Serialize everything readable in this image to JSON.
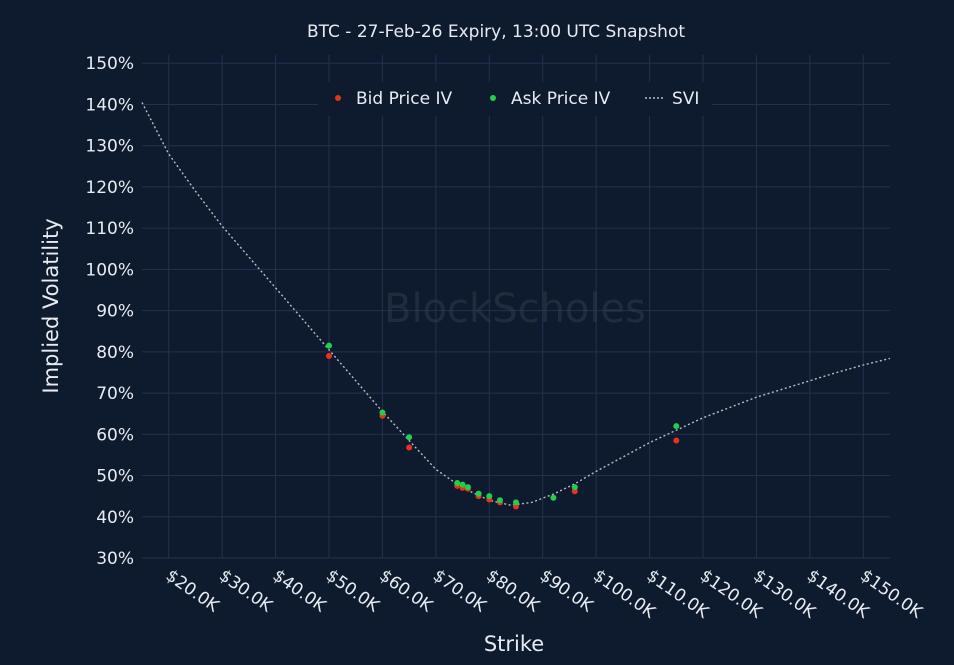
{
  "chart_data": {
    "type": "scatter",
    "title": "BTC - 27-Feb-26 Expiry, 13:00 UTC Snapshot",
    "xlabel": "Strike",
    "ylabel": "Implied Volatility",
    "x_ticks": [
      20000,
      30000,
      40000,
      50000,
      60000,
      70000,
      80000,
      90000,
      100000,
      110000,
      120000,
      130000,
      140000,
      150000
    ],
    "x_tick_labels": [
      "$20.0K",
      "$30.0K",
      "$40.0K",
      "$50.0K",
      "$60.0K",
      "$70.0K",
      "$80.0K",
      "$90.0K",
      "$100.0K",
      "$110.0K",
      "$120.0K",
      "$130.0K",
      "$140.0K",
      "$150.0K"
    ],
    "y_ticks": [
      30,
      40,
      50,
      60,
      70,
      80,
      90,
      100,
      110,
      120,
      130,
      140,
      150
    ],
    "y_tick_labels": [
      "30%",
      "40%",
      "50%",
      "60%",
      "70%",
      "80%",
      "90%",
      "100%",
      "110%",
      "120%",
      "130%",
      "140%",
      "150%"
    ],
    "xlim": [
      15000,
      155000
    ],
    "ylim": [
      30,
      152
    ],
    "grid": true,
    "legend_position": "top",
    "watermark": "BlockScholes",
    "colors": {
      "background": "#0e1a2e",
      "grid": "#22314f",
      "bid": "#e8321e",
      "ask": "#1fd14a",
      "svi": "#b7bcc6"
    },
    "series": [
      {
        "name": "Bid Price IV",
        "kind": "scatter",
        "points": [
          [
            50000,
            79
          ],
          [
            60000,
            64.5
          ],
          [
            65000,
            56.8
          ],
          [
            74000,
            47.5
          ],
          [
            75000,
            47
          ],
          [
            76000,
            46.8
          ],
          [
            78000,
            45
          ],
          [
            80000,
            44.2
          ],
          [
            82000,
            43.5
          ],
          [
            85000,
            42.5
          ],
          [
            96000,
            46.2
          ],
          [
            115000,
            58.5
          ]
        ]
      },
      {
        "name": "Ask Price IV",
        "kind": "scatter",
        "points": [
          [
            50000,
            81.5
          ],
          [
            60000,
            65.3
          ],
          [
            65000,
            59.3
          ],
          [
            74000,
            48.2
          ],
          [
            75000,
            47.8
          ],
          [
            76000,
            47.2
          ],
          [
            78000,
            45.6
          ],
          [
            80000,
            45
          ],
          [
            82000,
            44
          ],
          [
            85000,
            43.5
          ],
          [
            92000,
            44.6
          ],
          [
            96000,
            47.2
          ],
          [
            115000,
            62
          ]
        ]
      },
      {
        "name": "SVI",
        "kind": "line",
        "points": [
          [
            15000,
            140.5
          ],
          [
            20000,
            128
          ],
          [
            25000,
            119
          ],
          [
            30000,
            110.5
          ],
          [
            35000,
            103
          ],
          [
            40000,
            95.5
          ],
          [
            45000,
            88
          ],
          [
            50000,
            80.5
          ],
          [
            55000,
            73
          ],
          [
            60000,
            65.5
          ],
          [
            65000,
            58.5
          ],
          [
            70000,
            51.5
          ],
          [
            75000,
            47
          ],
          [
            80000,
            44
          ],
          [
            84000,
            42.8
          ],
          [
            88000,
            43.5
          ],
          [
            92000,
            45.5
          ],
          [
            96000,
            48
          ],
          [
            100000,
            51
          ],
          [
            105000,
            54.5
          ],
          [
            110000,
            58
          ],
          [
            115000,
            61
          ],
          [
            120000,
            64
          ],
          [
            125000,
            66.5
          ],
          [
            130000,
            69
          ],
          [
            135000,
            71
          ],
          [
            140000,
            73
          ],
          [
            145000,
            75
          ],
          [
            150000,
            76.8
          ],
          [
            155000,
            78.4
          ]
        ]
      }
    ]
  }
}
